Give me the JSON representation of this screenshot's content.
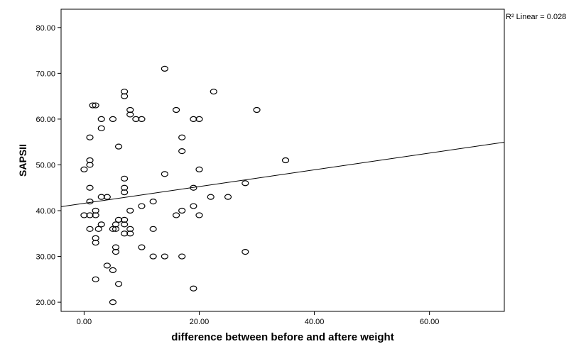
{
  "chart_data": {
    "type": "scatter",
    "xlabel": "difference between before and aftere weight",
    "ylabel": "SAPSII",
    "xlim": [
      -4,
      73
    ],
    "ylim": [
      18,
      84
    ],
    "xticks": [
      0,
      20,
      40,
      60
    ],
    "yticks": [
      20,
      30,
      40,
      50,
      60,
      70,
      80
    ],
    "x_tick_labels": [
      "0.00",
      "20.00",
      "40.00",
      "60.00"
    ],
    "y_tick_labels": [
      "20.00",
      "30.00",
      "40.00",
      "50.00",
      "60.00",
      "70.00",
      "80.00"
    ],
    "grid": false,
    "annotation": "R² Linear = 0.028",
    "fit_line": {
      "intercept": 41.6,
      "slope": 0.183
    },
    "points": [
      [
        0,
        39
      ],
      [
        0,
        49
      ],
      [
        1,
        36
      ],
      [
        1,
        39
      ],
      [
        1,
        42
      ],
      [
        1,
        45
      ],
      [
        1,
        50
      ],
      [
        1,
        51
      ],
      [
        1,
        56
      ],
      [
        1.5,
        63
      ],
      [
        2,
        63
      ],
      [
        2,
        40
      ],
      [
        2,
        39
      ],
      [
        2,
        34
      ],
      [
        2,
        33
      ],
      [
        2,
        25
      ],
      [
        2.5,
        36
      ],
      [
        3,
        60
      ],
      [
        3,
        58
      ],
      [
        3,
        43
      ],
      [
        3,
        37
      ],
      [
        4,
        43
      ],
      [
        4,
        28
      ],
      [
        5,
        60
      ],
      [
        5,
        36
      ],
      [
        5,
        27
      ],
      [
        5,
        20
      ],
      [
        5.5,
        37
      ],
      [
        5.5,
        36
      ],
      [
        5.5,
        32
      ],
      [
        5.5,
        31
      ],
      [
        6,
        54
      ],
      [
        6,
        38
      ],
      [
        6,
        24
      ],
      [
        7,
        66
      ],
      [
        7,
        65
      ],
      [
        7,
        47
      ],
      [
        7,
        45
      ],
      [
        7,
        44
      ],
      [
        7,
        38
      ],
      [
        7,
        37
      ],
      [
        7,
        35
      ],
      [
        8,
        62
      ],
      [
        8,
        61
      ],
      [
        8,
        40
      ],
      [
        8,
        36
      ],
      [
        8,
        35
      ],
      [
        9,
        60
      ],
      [
        10,
        60
      ],
      [
        10,
        41
      ],
      [
        10,
        32
      ],
      [
        12,
        42
      ],
      [
        12,
        36
      ],
      [
        12,
        30
      ],
      [
        14,
        71
      ],
      [
        14,
        48
      ],
      [
        14,
        30
      ],
      [
        16,
        62
      ],
      [
        16,
        39
      ],
      [
        17,
        56
      ],
      [
        17,
        53
      ],
      [
        17,
        40
      ],
      [
        17,
        30
      ],
      [
        19,
        60
      ],
      [
        19,
        45
      ],
      [
        19,
        41
      ],
      [
        19,
        23
      ],
      [
        20,
        60
      ],
      [
        20,
        49
      ],
      [
        20,
        39
      ],
      [
        22,
        43
      ],
      [
        22.5,
        66
      ],
      [
        25,
        43
      ],
      [
        28,
        46
      ],
      [
        28,
        31
      ],
      [
        30,
        62
      ],
      [
        35,
        51
      ]
    ]
  }
}
